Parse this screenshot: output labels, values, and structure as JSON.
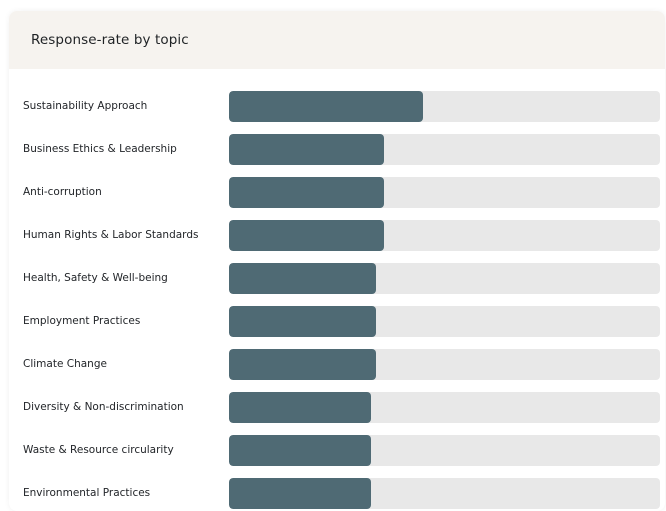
{
  "card": {
    "title": "Response-rate by topic"
  },
  "colors": {
    "bar": "#4f6a74",
    "track": "#e8e8e8",
    "header_bg": "#f6f3ef"
  },
  "chart_data": {
    "type": "bar",
    "orientation": "horizontal",
    "title": "Response-rate by topic",
    "xlabel": "",
    "ylabel": "",
    "xlim": [
      0,
      1
    ],
    "grid": false,
    "categories": [
      "Sustainability Approach",
      "Business Ethics & Leadership",
      "Anti-corruption",
      "Human Rights & Labor Standards",
      "Health, Safety & Well-being",
      "Employment Practices",
      "Climate Change",
      "Diversity & Non-discrimination",
      "Waste & Resource circularity",
      "Environmental Practices"
    ],
    "values": [
      0.45,
      0.36,
      0.36,
      0.36,
      0.34,
      0.34,
      0.34,
      0.33,
      0.33,
      0.33
    ]
  }
}
